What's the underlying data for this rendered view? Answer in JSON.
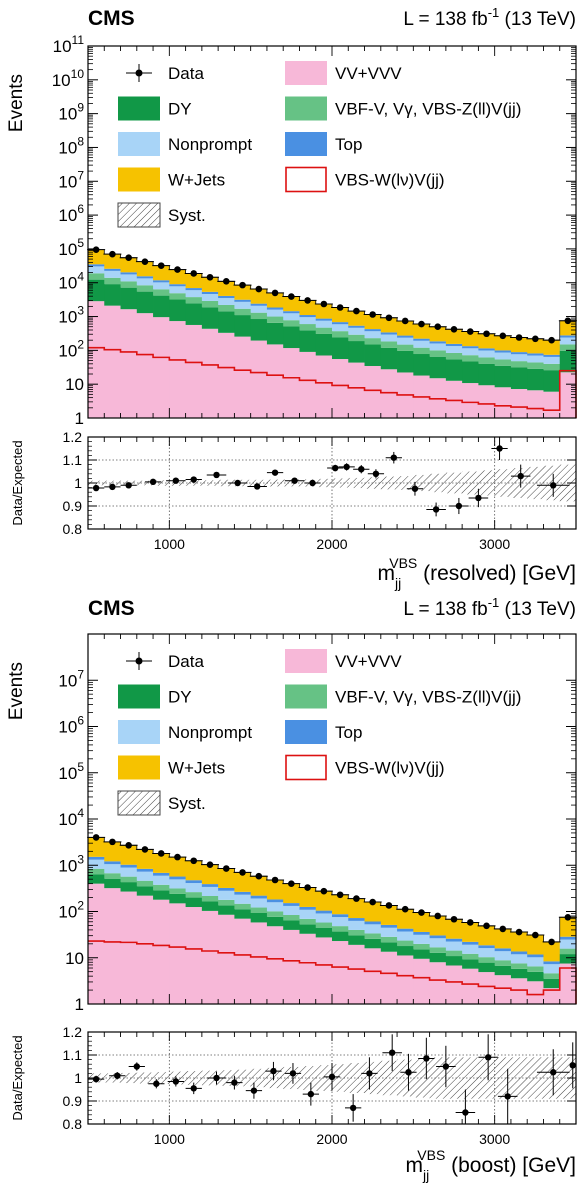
{
  "chart_data": [
    {
      "type": "stacked-histogram-with-ratio",
      "header": {
        "experiment": "CMS",
        "lumi": "L = 138 fb",
        "lumi_exp": "-1",
        "energy": "(13 TeV)"
      },
      "ylabel": "Events",
      "yscale": "log",
      "ylim": [
        1,
        100000000000
      ],
      "ytick_labels": [
        "1",
        "10",
        "10",
        "10",
        "10",
        "10",
        "10",
        "10",
        "10",
        "10",
        "10",
        "10"
      ],
      "ytick_exponents": [
        "",
        "",
        "2",
        "3",
        "4",
        "5",
        "6",
        "7",
        "8",
        "9",
        "10",
        "11"
      ],
      "xlabel": {
        "main": "m",
        "sub": "jj",
        "sup": "VBS",
        "rest": "(resolved) [GeV]"
      },
      "xlim": [
        500,
        3500
      ],
      "xticks": [
        1000,
        2000,
        3000
      ],
      "xtick_labels": [
        "1000",
        "2000",
        "3000"
      ],
      "legend": [
        {
          "label": "Data",
          "style": "data"
        },
        {
          "label": "VV+VVV",
          "style": "fill",
          "color": "#f7b8d8"
        },
        {
          "label": "DY",
          "style": "fill",
          "color": "#119847"
        },
        {
          "label": "VBF-V, Vγ, VBS-Z(ll)V(jj)",
          "style": "fill",
          "color": "#66c285"
        },
        {
          "label": "Nonprompt",
          "style": "fill",
          "color": "#a8d4f7"
        },
        {
          "label": "Top",
          "style": "fill",
          "color": "#4a90e2"
        },
        {
          "label": "W+Jets",
          "style": "fill",
          "color": "#f6c200"
        },
        {
          "label": "VBS-W(lν)V(jj)",
          "style": "line",
          "color": "#dd1111"
        },
        {
          "label": "Syst.",
          "style": "hatch"
        }
      ],
      "bin_edges": [
        500,
        600,
        700,
        800,
        900,
        1000,
        1100,
        1200,
        1300,
        1400,
        1500,
        1600,
        1700,
        1800,
        1900,
        2000,
        2100,
        2200,
        2300,
        2400,
        2500,
        2600,
        2700,
        2800,
        2900,
        3000,
        3100,
        3200,
        3300,
        3400,
        3500
      ],
      "stack_totals": [
        95000,
        70000,
        55000,
        42000,
        32000,
        24500,
        18800,
        14500,
        11000,
        8500,
        6500,
        5000,
        3900,
        3000,
        2350,
        1850,
        1450,
        1150,
        920,
        740,
        600,
        500,
        420,
        360,
        310,
        270,
        240,
        220,
        200,
        750
      ],
      "series": [
        {
          "name": "VV+VVV",
          "frac": 0.03
        },
        {
          "name": "DY",
          "frac": 0.1
        },
        {
          "name": "VBF-V, Vγ, VBS-Z(ll)V(jj)",
          "frac": 0.07
        },
        {
          "name": "Nonprompt",
          "frac": 0.12
        },
        {
          "name": "Top",
          "frac": 0.05
        },
        {
          "name": "W+Jets",
          "frac": 0.63
        }
      ],
      "signal": [
        120,
        105,
        90,
        75,
        62,
        52,
        44,
        37,
        31,
        26,
        22,
        18.5,
        15.5,
        13,
        11,
        9.2,
        7.8,
        6.6,
        5.6,
        4.8,
        4.2,
        3.7,
        3.3,
        2.9,
        2.6,
        2.3,
        2.1,
        1.9,
        1.7,
        25
      ],
      "data": [
        {
          "x": 550,
          "y": 95000
        },
        {
          "x": 650,
          "y": 70000
        },
        {
          "x": 750,
          "y": 55000
        },
        {
          "x": 850,
          "y": 42000
        },
        {
          "x": 950,
          "y": 32000
        },
        {
          "x": 1050,
          "y": 24500
        },
        {
          "x": 1150,
          "y": 18800
        },
        {
          "x": 1250,
          "y": 14500
        },
        {
          "x": 1350,
          "y": 11000
        },
        {
          "x": 1450,
          "y": 8500
        },
        {
          "x": 1550,
          "y": 6500
        },
        {
          "x": 1650,
          "y": 5000
        },
        {
          "x": 1750,
          "y": 3900
        },
        {
          "x": 1850,
          "y": 3000
        },
        {
          "x": 1950,
          "y": 2350
        },
        {
          "x": 2050,
          "y": 1850
        },
        {
          "x": 2150,
          "y": 1450
        },
        {
          "x": 2250,
          "y": 1150
        },
        {
          "x": 2350,
          "y": 920
        },
        {
          "x": 2450,
          "y": 740
        },
        {
          "x": 2550,
          "y": 600
        },
        {
          "x": 2650,
          "y": 500
        },
        {
          "x": 2750,
          "y": 420
        },
        {
          "x": 2850,
          "y": 360
        },
        {
          "x": 2950,
          "y": 310
        },
        {
          "x": 3050,
          "y": 270
        },
        {
          "x": 3150,
          "y": 240
        },
        {
          "x": 3250,
          "y": 220
        },
        {
          "x": 3350,
          "y": 200
        },
        {
          "x": 3450,
          "y": 750
        }
      ],
      "ratio": {
        "ylabel": "Data/Expected",
        "ylim": [
          0.8,
          1.2
        ],
        "ytick_labels": [
          "0.8",
          "0.9",
          "1",
          "1.1",
          "1.2"
        ],
        "syst_band": [
          0.01,
          0.01,
          0.01,
          0.01,
          0.012,
          0.012,
          0.012,
          0.012,
          0.014,
          0.014,
          0.014,
          0.015,
          0.015,
          0.016,
          0.018,
          0.02,
          0.022,
          0.025,
          0.028,
          0.03,
          0.035,
          0.04,
          0.045,
          0.05,
          0.055,
          0.06,
          0.065,
          0.07,
          0.075,
          0.08
        ],
        "points": [
          {
            "x": 550,
            "y": 0.978,
            "xerr": 50,
            "yerr": 0.005
          },
          {
            "x": 650,
            "y": 0.983,
            "xerr": 50,
            "yerr": 0.005
          },
          {
            "x": 750,
            "y": 0.99,
            "xerr": 50,
            "yerr": 0.005
          },
          {
            "x": 900,
            "y": 1.005,
            "xerr": 50,
            "yerr": 0.005
          },
          {
            "x": 1040,
            "y": 1.01,
            "xerr": 60,
            "yerr": 0.006
          },
          {
            "x": 1150,
            "y": 1.015,
            "xerr": 50,
            "yerr": 0.007
          },
          {
            "x": 1290,
            "y": 1.035,
            "xerr": 60,
            "yerr": 0.008
          },
          {
            "x": 1420,
            "y": 1.0,
            "xerr": 60,
            "yerr": 0.008
          },
          {
            "x": 1540,
            "y": 0.985,
            "xerr": 60,
            "yerr": 0.009
          },
          {
            "x": 1650,
            "y": 1.045,
            "xerr": 50,
            "yerr": 0.01
          },
          {
            "x": 1770,
            "y": 1.01,
            "xerr": 60,
            "yerr": 0.011
          },
          {
            "x": 1880,
            "y": 1.0,
            "xerr": 50,
            "yerr": 0.012
          },
          {
            "x": 2020,
            "y": 1.065,
            "xerr": 50,
            "yerr": 0.014
          },
          {
            "x": 2090,
            "y": 1.07,
            "xerr": 50,
            "yerr": 0.016
          },
          {
            "x": 2180,
            "y": 1.06,
            "xerr": 50,
            "yerr": 0.018
          },
          {
            "x": 2270,
            "y": 1.04,
            "xerr": 50,
            "yerr": 0.02
          },
          {
            "x": 2380,
            "y": 1.11,
            "xerr": 50,
            "yerr": 0.025
          },
          {
            "x": 2510,
            "y": 0.975,
            "xerr": 50,
            "yerr": 0.03
          },
          {
            "x": 2640,
            "y": 0.885,
            "xerr": 60,
            "yerr": 0.03
          },
          {
            "x": 2780,
            "y": 0.9,
            "xerr": 60,
            "yerr": 0.035
          },
          {
            "x": 2900,
            "y": 0.935,
            "xerr": 60,
            "yerr": 0.04
          },
          {
            "x": 3030,
            "y": 1.15,
            "xerr": 50,
            "yerr": 0.05
          },
          {
            "x": 3160,
            "y": 1.03,
            "xerr": 60,
            "yerr": 0.05
          },
          {
            "x": 3360,
            "y": 0.99,
            "xerr": 100,
            "yerr": 0.05
          }
        ]
      }
    },
    {
      "type": "stacked-histogram-with-ratio",
      "header": {
        "experiment": "CMS",
        "lumi": "L = 138 fb",
        "lumi_exp": "-1",
        "energy": "(13 TeV)"
      },
      "ylabel": "Events",
      "yscale": "log",
      "ylim": [
        1,
        100000000
      ],
      "ytick_labels": [
        "1",
        "10",
        "10",
        "10",
        "10",
        "10",
        "10",
        "10"
      ],
      "ytick_exponents": [
        "",
        "",
        "2",
        "3",
        "4",
        "5",
        "6",
        "7"
      ],
      "xlabel": {
        "main": "m",
        "sub": "jj",
        "sup": "VBS",
        "rest": "(boost) [GeV]"
      },
      "xlim": [
        500,
        3500
      ],
      "xticks": [
        1000,
        2000,
        3000
      ],
      "xtick_labels": [
        "1000",
        "2000",
        "3000"
      ],
      "legend": [
        {
          "label": "Data",
          "style": "data"
        },
        {
          "label": "VV+VVV",
          "style": "fill",
          "color": "#f7b8d8"
        },
        {
          "label": "DY",
          "style": "fill",
          "color": "#119847"
        },
        {
          "label": "VBF-V, Vγ, VBS-Z(ll)V(jj)",
          "style": "fill",
          "color": "#66c285"
        },
        {
          "label": "Nonprompt",
          "style": "fill",
          "color": "#a8d4f7"
        },
        {
          "label": "Top",
          "style": "fill",
          "color": "#4a90e2"
        },
        {
          "label": "W+Jets",
          "style": "fill",
          "color": "#f6c200"
        },
        {
          "label": "VBS-W(lν)V(jj)",
          "style": "line",
          "color": "#dd1111"
        },
        {
          "label": "Syst.",
          "style": "hatch"
        }
      ],
      "bin_edges": [
        500,
        600,
        700,
        800,
        900,
        1000,
        1100,
        1200,
        1300,
        1400,
        1500,
        1600,
        1700,
        1800,
        1900,
        2000,
        2100,
        2200,
        2300,
        2400,
        2500,
        2600,
        2700,
        2800,
        2900,
        3000,
        3100,
        3200,
        3300,
        3400,
        3500
      ],
      "stack_totals": [
        4000,
        3200,
        2700,
        2200,
        1800,
        1500,
        1250,
        1030,
        850,
        700,
        580,
        480,
        400,
        330,
        275,
        230,
        190,
        160,
        135,
        112,
        95,
        80,
        68,
        58,
        49,
        42,
        36,
        31,
        22,
        75
      ],
      "series": [
        {
          "name": "VV+VVV",
          "frac": 0.1
        },
        {
          "name": "DY",
          "frac": 0.06
        },
        {
          "name": "VBF-V, Vγ, VBS-Z(ll)V(jj)",
          "frac": 0.05
        },
        {
          "name": "Nonprompt",
          "frac": 0.12
        },
        {
          "name": "Top",
          "frac": 0.05
        },
        {
          "name": "W+Jets",
          "frac": 0.62
        }
      ],
      "signal": [
        23,
        22,
        21.5,
        20,
        18.5,
        17,
        15.5,
        14,
        12.8,
        11.5,
        10.4,
        9.5,
        8.6,
        7.8,
        7,
        6.3,
        5.7,
        5.1,
        4.6,
        4.1,
        3.7,
        3.3,
        3,
        2.7,
        2.4,
        2.2,
        2,
        1.6,
        2,
        6
      ],
      "data": [
        {
          "x": 550,
          "y": 4000
        },
        {
          "x": 650,
          "y": 3200
        },
        {
          "x": 750,
          "y": 2700
        },
        {
          "x": 850,
          "y": 2200
        },
        {
          "x": 950,
          "y": 1800
        },
        {
          "x": 1050,
          "y": 1500
        },
        {
          "x": 1150,
          "y": 1250
        },
        {
          "x": 1250,
          "y": 1030
        },
        {
          "x": 1350,
          "y": 850
        },
        {
          "x": 1450,
          "y": 700
        },
        {
          "x": 1550,
          "y": 580
        },
        {
          "x": 1650,
          "y": 480
        },
        {
          "x": 1750,
          "y": 400
        },
        {
          "x": 1850,
          "y": 330
        },
        {
          "x": 1950,
          "y": 275
        },
        {
          "x": 2050,
          "y": 230
        },
        {
          "x": 2150,
          "y": 190
        },
        {
          "x": 2250,
          "y": 160
        },
        {
          "x": 2350,
          "y": 135
        },
        {
          "x": 2450,
          "y": 112
        },
        {
          "x": 2550,
          "y": 95
        },
        {
          "x": 2650,
          "y": 80
        },
        {
          "x": 2750,
          "y": 68
        },
        {
          "x": 2850,
          "y": 58
        },
        {
          "x": 2950,
          "y": 49
        },
        {
          "x": 3050,
          "y": 42
        },
        {
          "x": 3150,
          "y": 36
        },
        {
          "x": 3250,
          "y": 31
        },
        {
          "x": 3350,
          "y": 22
        },
        {
          "x": 3450,
          "y": 75
        }
      ],
      "ratio": {
        "ylabel": "Data/Expected",
        "ylim": [
          0.8,
          1.2
        ],
        "ytick_labels": [
          "0.8",
          "0.9",
          "1",
          "1.1",
          "1.2"
        ],
        "syst_band": [
          0.02,
          0.02,
          0.022,
          0.024,
          0.026,
          0.028,
          0.03,
          0.032,
          0.034,
          0.036,
          0.04,
          0.044,
          0.048,
          0.052,
          0.056,
          0.06,
          0.065,
          0.07,
          0.075,
          0.08,
          0.085,
          0.09,
          0.09,
          0.09,
          0.09,
          0.09,
          0.09,
          0.09,
          0.09,
          0.09
        ],
        "points": [
          {
            "x": 550,
            "y": 0.995,
            "xerr": 50,
            "yerr": 0.015
          },
          {
            "x": 680,
            "y": 1.01,
            "xerr": 50,
            "yerr": 0.016
          },
          {
            "x": 800,
            "y": 1.05,
            "xerr": 50,
            "yerr": 0.018
          },
          {
            "x": 920,
            "y": 0.975,
            "xerr": 50,
            "yerr": 0.02
          },
          {
            "x": 1040,
            "y": 0.985,
            "xerr": 50,
            "yerr": 0.022
          },
          {
            "x": 1150,
            "y": 0.955,
            "xerr": 50,
            "yerr": 0.025
          },
          {
            "x": 1290,
            "y": 1.0,
            "xerr": 60,
            "yerr": 0.028
          },
          {
            "x": 1400,
            "y": 0.98,
            "xerr": 50,
            "yerr": 0.03
          },
          {
            "x": 1520,
            "y": 0.945,
            "xerr": 50,
            "yerr": 0.035
          },
          {
            "x": 1640,
            "y": 1.03,
            "xerr": 50,
            "yerr": 0.04
          },
          {
            "x": 1760,
            "y": 1.02,
            "xerr": 50,
            "yerr": 0.045
          },
          {
            "x": 1870,
            "y": 0.93,
            "xerr": 50,
            "yerr": 0.05
          },
          {
            "x": 2000,
            "y": 1.005,
            "xerr": 50,
            "yerr": 0.06
          },
          {
            "x": 2130,
            "y": 0.87,
            "xerr": 50,
            "yerr": 0.06
          },
          {
            "x": 2230,
            "y": 1.02,
            "xerr": 50,
            "yerr": 0.07
          },
          {
            "x": 2370,
            "y": 1.11,
            "xerr": 60,
            "yerr": 0.08
          },
          {
            "x": 2470,
            "y": 1.025,
            "xerr": 50,
            "yerr": 0.08
          },
          {
            "x": 2580,
            "y": 1.085,
            "xerr": 50,
            "yerr": 0.09
          },
          {
            "x": 2700,
            "y": 1.05,
            "xerr": 60,
            "yerr": 0.09
          },
          {
            "x": 2820,
            "y": 0.85,
            "xerr": 60,
            "yerr": 0.1
          },
          {
            "x": 2960,
            "y": 1.09,
            "xerr": 60,
            "yerr": 0.1
          },
          {
            "x": 3080,
            "y": 0.92,
            "xerr": 60,
            "yerr": 0.12
          },
          {
            "x": 3360,
            "y": 1.025,
            "xerr": 100,
            "yerr": 0.1
          },
          {
            "x": 3480,
            "y": 1.055,
            "xerr": 20,
            "yerr": 0.1
          }
        ]
      }
    }
  ]
}
